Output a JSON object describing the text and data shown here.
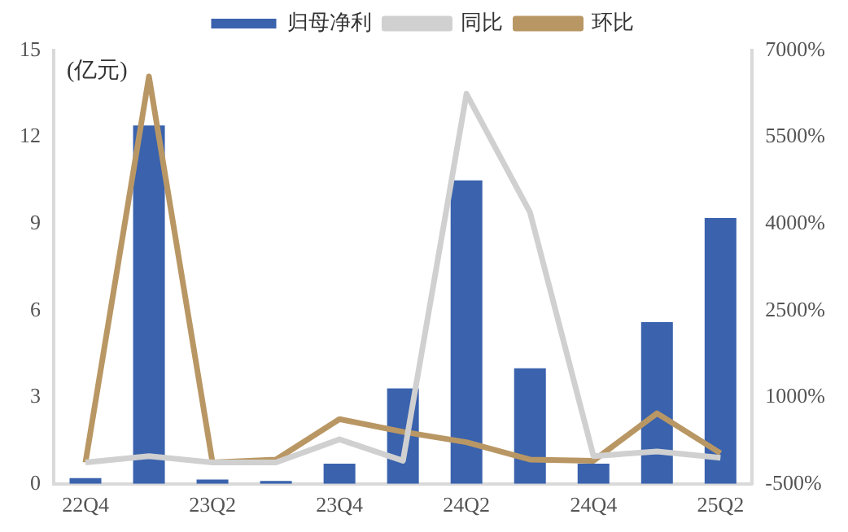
{
  "chart_data": {
    "type": "bar",
    "categories": [
      "22Q4",
      null,
      "23Q2",
      null,
      "23Q4",
      null,
      "24Q2",
      null,
      "24Q4",
      null,
      "25Q2"
    ],
    "series": [
      {
        "name": "归母净利",
        "color": "#3a62ad",
        "values": [
          0.2,
          12.4,
          0.15,
          0.1,
          0.7,
          3.3,
          10.5,
          4.0,
          0.7,
          5.6,
          9.2
        ]
      },
      {
        "name": "同比",
        "type": "line",
        "axis": "y2",
        "color": "#d0d0d0",
        "values": [
          -130,
          -20,
          -130,
          -130,
          270,
          -100,
          6250,
          4200,
          -20,
          60,
          -50
        ]
      },
      {
        "name": "环比",
        "type": "line",
        "axis": "y2",
        "color": "#b99764",
        "values": [
          -130,
          6550,
          -130,
          -80,
          620,
          400,
          220,
          -80,
          -100,
          720,
          30
        ]
      }
    ],
    "ylim": [
      0,
      15
    ],
    "yticks": [
      0,
      3,
      6,
      9,
      12,
      15
    ],
    "y2lim": [
      -500,
      7000
    ],
    "y2ticks": [
      {
        "value": -500,
        "label": "-500%"
      },
      {
        "value": 1000,
        "label": "1000%"
      },
      {
        "value": 2500,
        "label": "2500%"
      },
      {
        "value": 4000,
        "label": "4000%"
      },
      {
        "value": 5500,
        "label": "5500%"
      },
      {
        "value": 7000,
        "label": "7000%"
      }
    ],
    "annotations": [
      "(亿元)"
    ],
    "legend": "top",
    "grid": false,
    "marker": "none",
    "line_style": "solid"
  }
}
